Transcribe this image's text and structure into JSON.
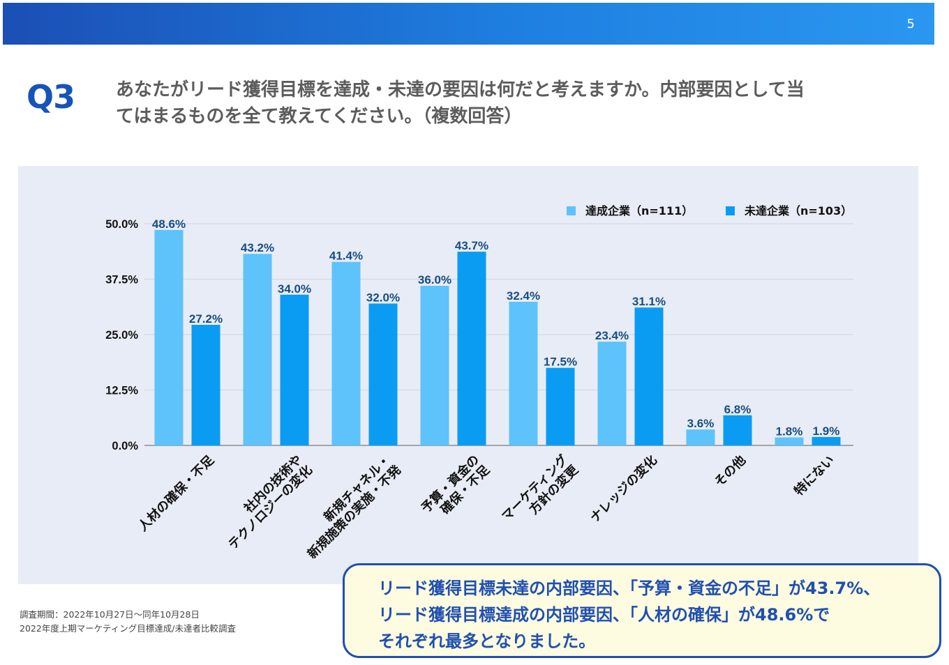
{
  "page_number": "5",
  "question": {
    "label": "Q3",
    "line1": "あなたがリード獲得目標を達成・未達の要因は何だと考えますか。内部要因として当",
    "line2": "てはまるものを全て教えてください。（複数回答）"
  },
  "footnote": {
    "line1": "調査期間：2022年10月27日〜同年10月28日",
    "line2": "2022年度上期マーケティング目標達成/未達者比較調査"
  },
  "summary": {
    "line1": "リード獲得目標未達の内部要因、「予算・資金の不足」が43.7%、",
    "line2": "リード獲得目標達成の内部要因、「人材の確保」が48.6%で",
    "line3": "それぞれ最多となりました。"
  },
  "colors": {
    "achieved": "#5ec2fb",
    "not_achieved": "#0a9cf2",
    "data_label": "#174e80",
    "axis_text": "#111111",
    "accent": "#1554b8"
  },
  "chart_data": {
    "type": "bar",
    "categories": [
      [
        "人材の確保・不足"
      ],
      [
        "社内の技術や",
        "テクノロジーの変化"
      ],
      [
        "新規チャネル・",
        "新規施策の実施・不発"
      ],
      [
        "予算・資金の",
        "確保・不足"
      ],
      [
        "マーケティング",
        "方針の変更"
      ],
      [
        "ナレッジの変化"
      ],
      [
        "その他"
      ],
      [
        "特にない"
      ]
    ],
    "series": [
      {
        "name": "達成企業（n=111）",
        "values": [
          48.6,
          43.2,
          41.4,
          36.0,
          32.4,
          23.4,
          3.6,
          1.8
        ]
      },
      {
        "name": "未達企業（n=103）",
        "values": [
          27.2,
          34.0,
          32.0,
          43.7,
          17.5,
          31.1,
          6.8,
          1.9
        ]
      }
    ],
    "yticks": [
      "50.0%",
      "37.5%",
      "25.0%",
      "12.5%",
      "0.0%"
    ],
    "ylim": [
      0,
      50
    ],
    "value_suffix": "%",
    "grid": true,
    "legend_position": "top-right"
  }
}
